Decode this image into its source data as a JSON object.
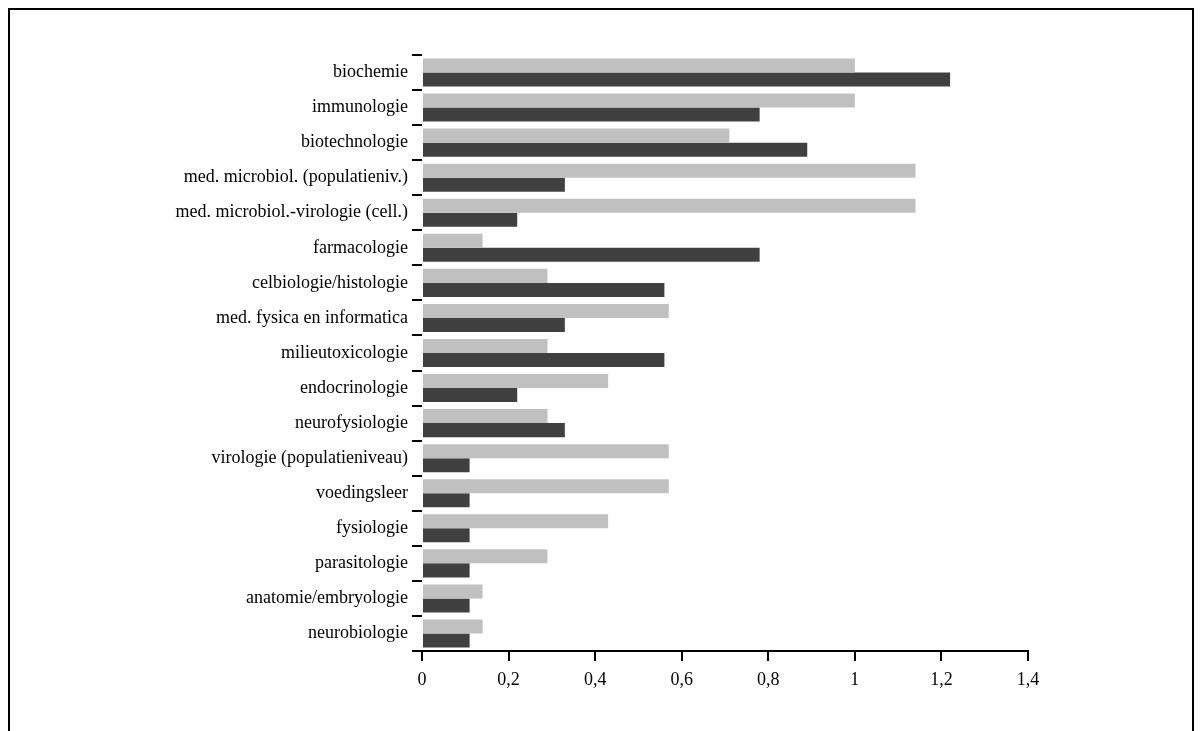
{
  "chart_data": {
    "type": "bar",
    "orientation": "horizontal",
    "categories": [
      "biochemie",
      "immunologie",
      "biotechnologie",
      "med. microbiol. (populatieniv.)",
      "med. microbiol.-virologie (cell.)",
      "farmacologie",
      "celbiologie/histologie",
      "med. fysica en informatica",
      "milieutoxicologie",
      "endocrinologie",
      "neurofysiologie",
      "virologie (populatieniveau)",
      "voedingsleer",
      "fysiologie",
      "parasitologie",
      "anatomie/embryologie",
      "neurobiologie"
    ],
    "series": [
      {
        "color": "#c0c0c0",
        "values": [
          1.0,
          1.0,
          0.71,
          1.14,
          1.14,
          0.14,
          0.29,
          0.57,
          0.29,
          0.43,
          0.29,
          0.57,
          0.57,
          0.43,
          0.29,
          0.14,
          0.14
        ]
      },
      {
        "color": "#404040",
        "values": [
          1.22,
          0.78,
          0.89,
          0.33,
          0.22,
          0.78,
          0.56,
          0.33,
          0.56,
          0.22,
          0.33,
          0.11,
          0.11,
          0.11,
          0.11,
          0.11,
          0.11
        ]
      }
    ],
    "xlim": [
      0,
      1.4
    ],
    "xticks": [
      0,
      {
        "value": 0.2,
        "label": "0,2"
      },
      {
        "value": 0.4,
        "label": "0,4"
      },
      {
        "value": 0.6,
        "label": "0,6"
      },
      {
        "value": 0.8,
        "label": "0,8"
      },
      1,
      {
        "value": 1.2,
        "label": "1,2"
      },
      {
        "value": 1.4,
        "label": "1,4"
      }
    ],
    "grid": false,
    "legend": false
  }
}
